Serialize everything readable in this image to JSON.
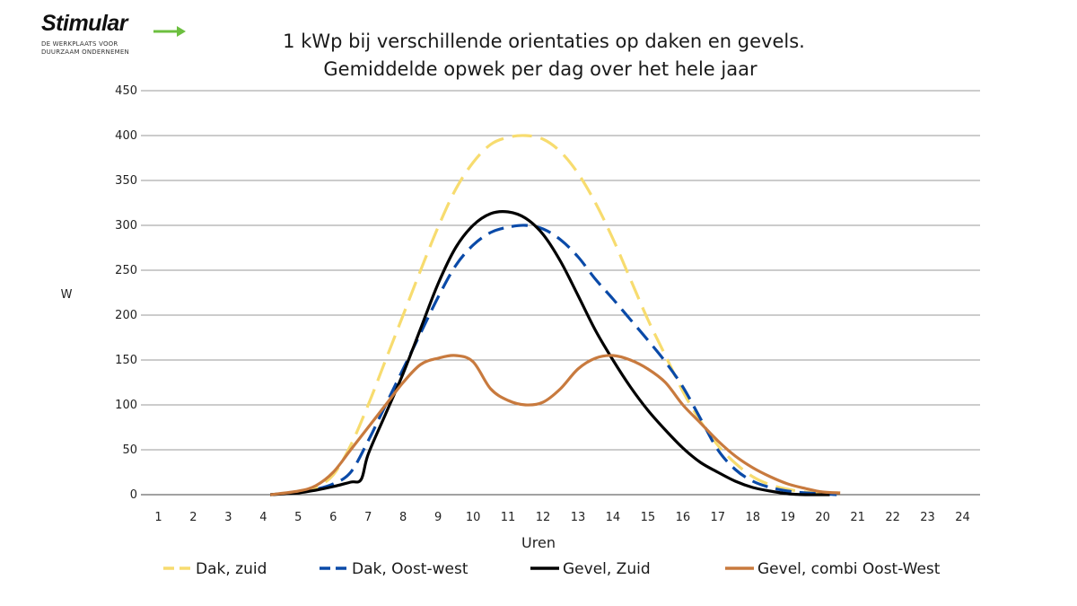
{
  "logo": {
    "name": "Stimular",
    "tagline": "DE WERKPLAATS VOOR\nDUURZAAM ONDERNEMEN",
    "arrow_color": "#6cbf3f"
  },
  "chart_data": {
    "type": "line",
    "title": [
      "1 kWp bij verschillende orientaties op daken en gevels.",
      "Gemiddelde opwek per dag over het hele jaar"
    ],
    "xlabel": "Uren",
    "ylabel": "W",
    "xlim": [
      0.5,
      24.5
    ],
    "ylim": [
      0,
      450
    ],
    "yticks": [
      0,
      50,
      100,
      150,
      200,
      250,
      300,
      350,
      400,
      450
    ],
    "xticks": [
      1,
      2,
      3,
      4,
      5,
      6,
      7,
      8,
      9,
      10,
      11,
      12,
      13,
      14,
      15,
      16,
      17,
      18,
      19,
      20,
      21,
      22,
      23,
      24
    ],
    "grid": "horizontal",
    "legend_position": "bottom",
    "series": [
      {
        "name": "Dak, zuid",
        "color": "#f7dc6f",
        "dash": "long-dash",
        "x": [
          4.2,
          5,
          5.5,
          6,
          6.5,
          7,
          7.5,
          8,
          8.5,
          9,
          9.5,
          10,
          10.5,
          11,
          11.5,
          12,
          12.5,
          13,
          13.5,
          14,
          14.5,
          15,
          15.5,
          16,
          16.5,
          17,
          17.5,
          18,
          18.5,
          19,
          19.5,
          20,
          20.4
        ],
        "y": [
          0,
          3,
          8,
          22,
          55,
          100,
          150,
          200,
          250,
          298,
          340,
          370,
          390,
          398,
          400,
          396,
          382,
          358,
          325,
          285,
          240,
          195,
          155,
          115,
          82,
          55,
          35,
          20,
          11,
          6,
          3,
          1,
          0
        ]
      },
      {
        "name": "Dak, Oost-west",
        "color": "#0a4aa8",
        "dash": "dash",
        "x": [
          4.2,
          5,
          5.5,
          6,
          6.5,
          7,
          7.5,
          8,
          8.5,
          9,
          9.5,
          10,
          10.5,
          11,
          11.5,
          12,
          12.5,
          13,
          13.5,
          14,
          14.5,
          15,
          15.5,
          16,
          16.5,
          17,
          17.5,
          18,
          18.5,
          19,
          19.5,
          20,
          20.4
        ],
        "y": [
          0,
          3,
          6,
          12,
          25,
          60,
          100,
          140,
          180,
          220,
          255,
          278,
          292,
          298,
          300,
          296,
          284,
          265,
          240,
          218,
          195,
          172,
          148,
          120,
          85,
          50,
          28,
          15,
          8,
          4,
          2,
          1,
          0
        ]
      },
      {
        "name": "Gevel, Zuid",
        "color": "#000000",
        "dash": "solid",
        "x": [
          4.2,
          5,
          5.5,
          6,
          6.5,
          6.8,
          7,
          7.5,
          8,
          8.5,
          9,
          9.5,
          10,
          10.5,
          11,
          11.5,
          12,
          12.5,
          13,
          13.5,
          14,
          14.5,
          15,
          15.5,
          16,
          16.5,
          17,
          17.5,
          18,
          18.5,
          19,
          19.5,
          20,
          20.2
        ],
        "y": [
          0,
          2,
          5,
          9,
          14,
          17,
          45,
          90,
          135,
          185,
          235,
          275,
          300,
          313,
          315,
          308,
          290,
          260,
          222,
          183,
          150,
          120,
          94,
          72,
          52,
          36,
          25,
          15,
          8,
          4,
          1,
          0,
          0,
          0
        ]
      },
      {
        "name": "Gevel, combi Oost-West",
        "color": "#c87a3e",
        "dash": "solid",
        "x": [
          4.2,
          5,
          5.5,
          6,
          6.5,
          7,
          7.5,
          8,
          8.5,
          9,
          9.5,
          10,
          10.5,
          11,
          11.5,
          12,
          12.5,
          13,
          13.5,
          14,
          14.5,
          15,
          15.5,
          16,
          16.5,
          17,
          17.5,
          18,
          18.5,
          19,
          19.5,
          20,
          20.5
        ],
        "y": [
          0,
          4,
          10,
          25,
          50,
          75,
          100,
          125,
          145,
          152,
          155,
          148,
          118,
          105,
          100,
          103,
          118,
          140,
          152,
          155,
          150,
          140,
          125,
          100,
          80,
          60,
          43,
          30,
          20,
          12,
          7,
          3,
          2
        ]
      }
    ]
  }
}
